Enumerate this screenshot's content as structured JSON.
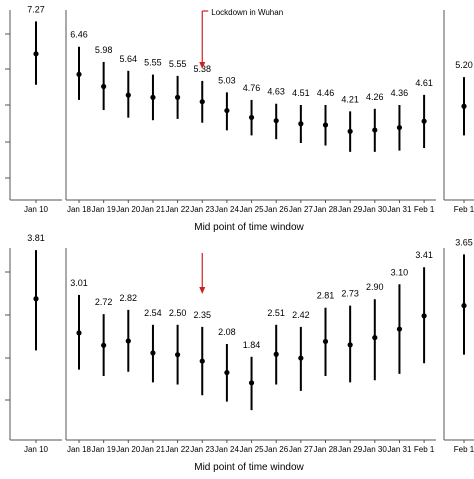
{
  "chart_data": [
    {
      "type": "errorbar",
      "xlabel": "Mid point of time window",
      "ylabel": "",
      "annotation": "Lockdown in Wuhan",
      "annotation_category": "Jan 23",
      "grid": false,
      "ylim": [
        1.5,
        9.0
      ],
      "groups": [
        {
          "categories": [
            "Jan 10"
          ],
          "points": [
            {
              "value": 7.27,
              "lower": 6.05,
              "upper": 8.55
            }
          ]
        },
        {
          "categories": [
            "Jan 18",
            "Jan 19",
            "Jan 20",
            "Jan 21",
            "Jan 22",
            "Jan 23",
            "Jan 24",
            "Jan 25",
            "Jan 26",
            "Jan 27",
            "Jan 28",
            "Jan 29",
            "Jan 30",
            "Jan 31",
            "Feb 1"
          ],
          "points": [
            {
              "value": 6.46,
              "lower": 5.45,
              "upper": 7.55
            },
            {
              "value": 5.98,
              "lower": 5.05,
              "upper": 6.95
            },
            {
              "value": 5.64,
              "lower": 4.75,
              "upper": 6.6
            },
            {
              "value": 5.55,
              "lower": 4.65,
              "upper": 6.45
            },
            {
              "value": 5.55,
              "lower": 4.7,
              "upper": 6.4
            },
            {
              "value": 5.38,
              "lower": 4.55,
              "upper": 6.2
            },
            {
              "value": 5.03,
              "lower": 4.25,
              "upper": 5.75
            },
            {
              "value": 4.76,
              "lower": 4.05,
              "upper": 5.45
            },
            {
              "value": 4.63,
              "lower": 3.9,
              "upper": 5.3
            },
            {
              "value": 4.51,
              "lower": 3.75,
              "upper": 5.25
            },
            {
              "value": 4.46,
              "lower": 3.65,
              "upper": 5.25
            },
            {
              "value": 4.21,
              "lower": 3.4,
              "upper": 5.0
            },
            {
              "value": 4.26,
              "lower": 3.4,
              "upper": 5.1
            },
            {
              "value": 4.36,
              "lower": 3.45,
              "upper": 5.25
            },
            {
              "value": 4.61,
              "lower": 3.55,
              "upper": 5.65
            }
          ]
        },
        {
          "categories": [
            "Feb 1"
          ],
          "points": [
            {
              "value": 5.2,
              "lower": 4.05,
              "upper": 6.35
            }
          ]
        }
      ],
      "value_labels": [
        "7.27",
        "6.46",
        "5.98",
        "5.64",
        "5.55",
        "5.55",
        "5.38",
        "5.03",
        "4.76",
        "4.63",
        "4.51",
        "4.46",
        "4.21",
        "4.26",
        "4.36",
        "4.61",
        "5.20"
      ]
    },
    {
      "type": "errorbar",
      "xlabel": "Mid point of time window",
      "ylabel": "",
      "annotation_category": "Jan 23",
      "grid": false,
      "ylim": [
        0.5,
        5.0
      ],
      "groups": [
        {
          "categories": [
            "Jan 10"
          ],
          "points": [
            {
              "value": 3.81,
              "lower": 2.6,
              "upper": 4.95
            }
          ]
        },
        {
          "categories": [
            "Jan 18",
            "Jan 19",
            "Jan 20",
            "Jan 21",
            "Jan 22",
            "Jan 23",
            "Jan 24",
            "Jan 25",
            "Jan 26",
            "Jan 27",
            "Jan 28",
            "Jan 29",
            "Jan 30",
            "Jan 31",
            "Feb 1"
          ],
          "points": [
            {
              "value": 3.01,
              "lower": 2.15,
              "upper": 3.9
            },
            {
              "value": 2.72,
              "lower": 2.0,
              "upper": 3.45
            },
            {
              "value": 2.82,
              "lower": 2.1,
              "upper": 3.55
            },
            {
              "value": 2.54,
              "lower": 1.85,
              "upper": 3.2
            },
            {
              "value": 2.5,
              "lower": 1.8,
              "upper": 3.2
            },
            {
              "value": 2.35,
              "lower": 1.55,
              "upper": 3.15
            },
            {
              "value": 2.08,
              "lower": 1.4,
              "upper": 2.75
            },
            {
              "value": 1.84,
              "lower": 1.2,
              "upper": 2.45
            },
            {
              "value": 2.51,
              "lower": 1.8,
              "upper": 3.2
            },
            {
              "value": 2.42,
              "lower": 1.65,
              "upper": 3.15
            },
            {
              "value": 2.81,
              "lower": 2.0,
              "upper": 3.6
            },
            {
              "value": 2.73,
              "lower": 1.85,
              "upper": 3.65
            },
            {
              "value": 2.9,
              "lower": 1.9,
              "upper": 3.8
            },
            {
              "value": 3.1,
              "lower": 2.05,
              "upper": 4.15
            },
            {
              "value": 3.41,
              "lower": 2.3,
              "upper": 4.55
            }
          ]
        },
        {
          "categories": [
            "Feb 1"
          ],
          "points": [
            {
              "value": 3.65,
              "lower": 2.5,
              "upper": 4.85
            }
          ]
        }
      ],
      "value_labels": [
        "3.81",
        "3.01",
        "2.72",
        "2.82",
        "2.54",
        "2.50",
        "2.35",
        "2.08",
        "1.84",
        "2.51",
        "2.42",
        "2.81",
        "2.73",
        "2.90",
        "3.10",
        "3.41",
        "3.65"
      ]
    }
  ],
  "colors": {
    "ink": "#000000",
    "annotation_arrow": "#cc2222",
    "axis": "#555555"
  }
}
